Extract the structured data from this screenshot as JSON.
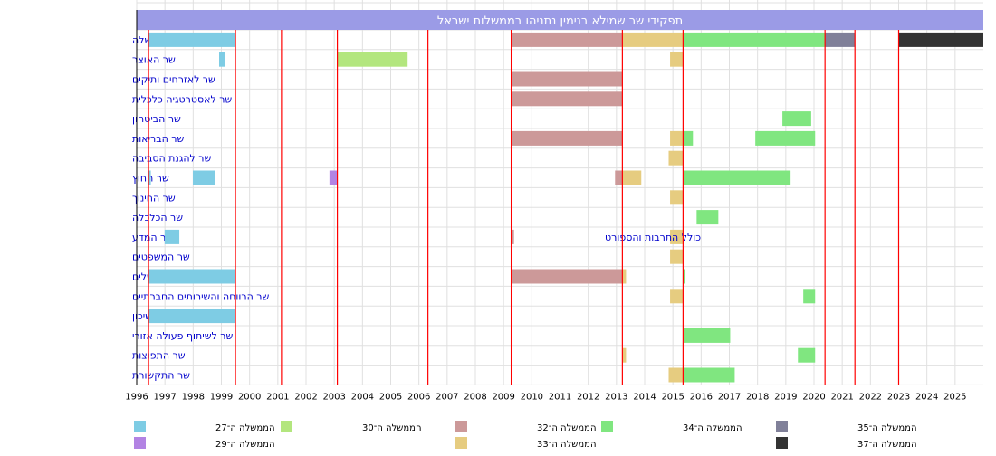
{
  "chart_data": {
    "type": "timeline",
    "title": "תפקידי שר שמילא בנימין נתניהו בממשלות ישראל",
    "xlim": [
      1996,
      2026
    ],
    "x_ticks": [
      1996,
      1997,
      1998,
      1999,
      2000,
      2001,
      2002,
      2003,
      2004,
      2005,
      2006,
      2007,
      2008,
      2009,
      2010,
      2011,
      2012,
      2013,
      2014,
      2015,
      2016,
      2017,
      2018,
      2019,
      2020,
      2021,
      2022,
      2023,
      2024,
      2025
    ],
    "government_boundaries": [
      1996.42,
      1999.5,
      2001.13,
      2003.11,
      2006.32,
      2009.27,
      2013.21,
      2015.36,
      2020.39,
      2021.45,
      2023.0
    ],
    "governments": [
      {
        "id": "27",
        "label": "הממשלה ה־27",
        "color": "#7ecce4"
      },
      {
        "id": "29",
        "label": "הממשלה ה־29",
        "color": "#b283e3"
      },
      {
        "id": "30",
        "label": "הממשלה ה־30",
        "color": "#b3e67e"
      },
      {
        "id": "32",
        "label": "הממשלה ה־32",
        "color": "#cc9999"
      },
      {
        "id": "33",
        "label": "הממשלה ה־33",
        "color": "#e6cc80"
      },
      {
        "id": "34",
        "label": "הממשלה ה־34",
        "color": "#80e680"
      },
      {
        "id": "35",
        "label": "הממשלה ה־35",
        "color": "#808099"
      },
      {
        "id": "37",
        "label": "הממשלה ה־37",
        "color": "#333333"
      }
    ],
    "rows": [
      {
        "label": "ראש הממשלה",
        "bars": [
          [
            1996.42,
            1999.5,
            "27"
          ],
          [
            2009.27,
            2013.21,
            "32"
          ],
          [
            2013.21,
            2015.36,
            "33"
          ],
          [
            2015.36,
            2020.39,
            "34"
          ],
          [
            2020.39,
            2021.45,
            "35"
          ],
          [
            2023.0,
            2026,
            "37"
          ]
        ]
      },
      {
        "label": "שר האוצר",
        "bars": [
          [
            1998.92,
            1999.14,
            "27"
          ],
          [
            2003.11,
            2005.6,
            "30"
          ],
          [
            2014.9,
            2015.36,
            "33"
          ]
        ]
      },
      {
        "label": "שר לאזרחים ותיקים",
        "bars": [
          [
            2009.27,
            2013.21,
            "32"
          ]
        ]
      },
      {
        "label": "שר לאסטרטגיה כלכלית",
        "bars": [
          [
            2009.27,
            2013.21,
            "32"
          ]
        ]
      },
      {
        "label": "שר הביטחון",
        "bars": [
          [
            2018.88,
            2019.9,
            "34"
          ]
        ]
      },
      {
        "label": "שר הבריאות",
        "bars": [
          [
            2009.27,
            2013.21,
            "32"
          ],
          [
            2014.9,
            2015.36,
            "33"
          ],
          [
            2015.36,
            2015.71,
            "34"
          ],
          [
            2017.92,
            2020.04,
            "34"
          ]
        ]
      },
      {
        "label": "שר להגנת הסביבה",
        "bars": [
          [
            2014.85,
            2015.36,
            "33"
          ]
        ]
      },
      {
        "label": "שר החוץ",
        "bars": [
          [
            1996.42,
            1996.5,
            "27"
          ],
          [
            1997.99,
            1998.76,
            "27"
          ],
          [
            2002.83,
            2003.11,
            "29"
          ],
          [
            2012.95,
            2013.21,
            "32"
          ],
          [
            2013.21,
            2013.88,
            "33"
          ],
          [
            2015.36,
            2019.17,
            "34"
          ]
        ]
      },
      {
        "label": "שר החינוך",
        "bars": [
          [
            2014.9,
            2015.36,
            "33"
          ]
        ]
      },
      {
        "label": "שר הכלכלה",
        "bars": [
          [
            2015.84,
            2016.61,
            "34"
          ]
        ]
      },
      {
        "label": "שר המדע",
        "bars": [
          [
            1996.99,
            1997.51,
            "27"
          ],
          [
            2009.27,
            2009.37,
            "32"
          ],
          [
            2014.9,
            2015.36,
            "33"
          ]
        ],
        "annotation": "כולל התרבות והספורט"
      },
      {
        "label": "שר המשפטים",
        "bars": [
          [
            2014.9,
            2015.36,
            "33"
          ]
        ]
      },
      {
        "label": "שר לענייני ירושלים",
        "bars": [
          [
            1996.42,
            1999.5,
            "27"
          ],
          [
            2009.27,
            2013.21,
            "32"
          ],
          [
            2013.21,
            2013.34,
            "33"
          ],
          [
            2015.36,
            2015.42,
            "34"
          ]
        ]
      },
      {
        "label": "שר הרווחה והשירותים החברתיים",
        "bars": [
          [
            2014.9,
            2015.36,
            "33"
          ],
          [
            2019.62,
            2020.04,
            "34"
          ]
        ]
      },
      {
        "label": "שר הבינוי והשיכון",
        "bars": [
          [
            1996.42,
            1999.5,
            "27"
          ]
        ]
      },
      {
        "label": "שר לשיתוף פעולה אזורי",
        "bars": [
          [
            2015.36,
            2017.03,
            "34"
          ]
        ]
      },
      {
        "label": "שר התפוצות",
        "bars": [
          [
            2013.21,
            2013.34,
            "33"
          ],
          [
            2019.43,
            2020.04,
            "34"
          ]
        ]
      },
      {
        "label": "שר התקשורת",
        "bars": [
          [
            2014.85,
            2015.36,
            "33"
          ],
          [
            2015.36,
            2017.19,
            "34"
          ]
        ]
      }
    ],
    "legend_placement": "bottom"
  }
}
